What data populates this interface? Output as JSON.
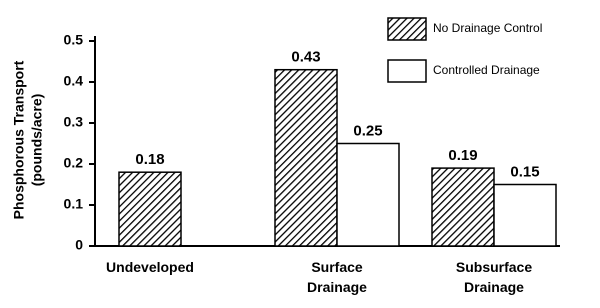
{
  "chart_data": {
    "type": "bar",
    "ylabel": [
      "Phosphorous Transport",
      "(pounds/acre)"
    ],
    "categories": [
      "Undeveloped",
      "Surface Drainage",
      "Subsurface Drainage"
    ],
    "series": [
      {
        "name": "No Drainage Control",
        "color": "#000000",
        "hatch": true,
        "values": [
          0.18,
          0.43,
          0.19
        ]
      },
      {
        "name": "Controlled Drainage",
        "color": "#000000",
        "hatch": false,
        "values": [
          null,
          0.25,
          0.15
        ]
      }
    ],
    "ylim": [
      0,
      0.5
    ],
    "yticks": [
      0,
      0.1,
      0.2,
      0.3,
      0.4,
      0.5
    ],
    "legend": "upper right"
  }
}
